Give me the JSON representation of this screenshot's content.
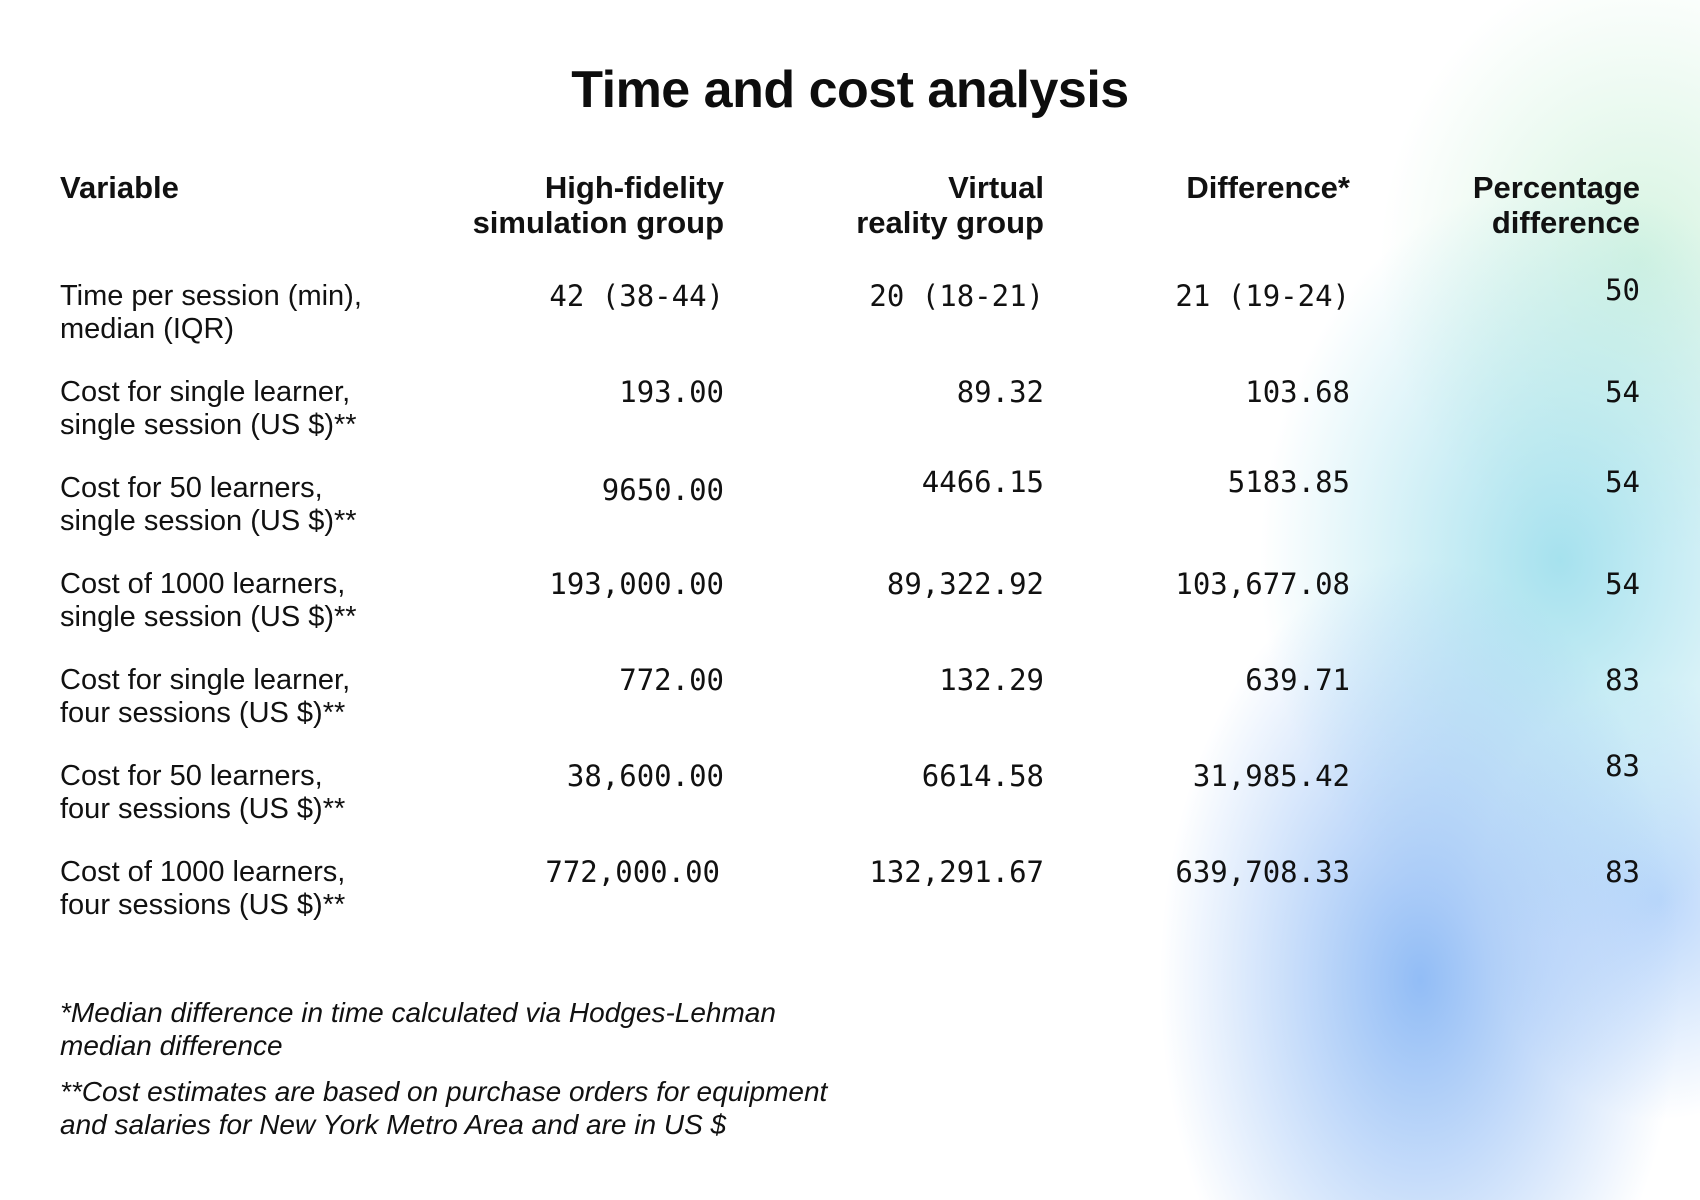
{
  "chart_data": {
    "type": "table",
    "title": "Time and cost analysis",
    "columns": [
      "Variable",
      "High-fidelity simulation group",
      "Virtual reality group",
      "Difference*",
      "Percentage difference"
    ],
    "column_lines": {
      "variable": [
        "Variable"
      ],
      "high_fidelity": [
        "High-fidelity",
        "simulation group"
      ],
      "virtual_reality": [
        "Virtual",
        "reality group"
      ],
      "difference": [
        "Difference*"
      ],
      "percentage": [
        "Percentage",
        "difference"
      ]
    },
    "rows": [
      {
        "label_lines": [
          "Time per session (min),",
          "median (IQR)"
        ],
        "high_fidelity": "42 (38-44)",
        "virtual_reality": "20 (18-21)",
        "difference": "21 (19-24)",
        "percentage": "50"
      },
      {
        "label_lines": [
          "Cost for single learner,",
          "single session (US $)**"
        ],
        "high_fidelity": "193.00",
        "virtual_reality": "89.32",
        "difference": "103.68",
        "percentage": "54"
      },
      {
        "label_lines": [
          "Cost for 50 learners,",
          "single session (US $)**"
        ],
        "high_fidelity": "9650.00",
        "virtual_reality": "4466.15",
        "difference": "5183.85",
        "percentage": "54"
      },
      {
        "label_lines": [
          "Cost of 1000 learners,",
          "single session (US $)**"
        ],
        "high_fidelity": "193,000.00",
        "virtual_reality": "89,322.92",
        "difference": "103,677.08",
        "percentage": "54"
      },
      {
        "label_lines": [
          "Cost for single learner,",
          "four sessions (US $)**"
        ],
        "high_fidelity": "772.00",
        "virtual_reality": "132.29",
        "difference": "639.71",
        "percentage": "83"
      },
      {
        "label_lines": [
          "Cost for 50 learners,",
          "four sessions (US $)**"
        ],
        "high_fidelity": "38,600.00",
        "virtual_reality": "6614.58",
        "difference": "31,985.42",
        "percentage": "83"
      },
      {
        "label_lines": [
          "Cost of 1000 learners,",
          "four sessions (US $)**"
        ],
        "high_fidelity": "772,000.00",
        "virtual_reality": "132,291.67",
        "difference": "639,708.33",
        "percentage": "83"
      }
    ],
    "footnotes": [
      {
        "lines": [
          "*Median difference in time calculated via Hodges-Lehman",
          "median difference"
        ]
      },
      {
        "lines": [
          "**Cost estimates are based on purchase orders for equipment",
          "and salaries for New York Metro Area and are in US $"
        ]
      }
    ]
  }
}
